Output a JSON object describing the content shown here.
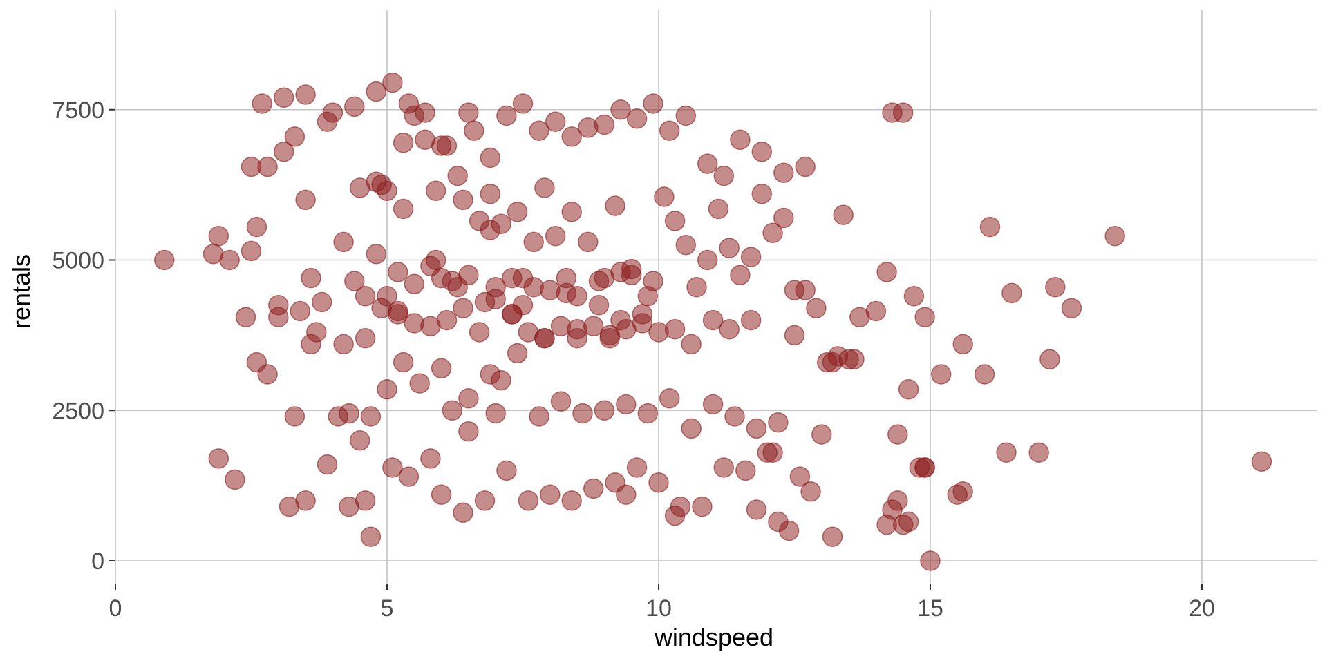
{
  "chart_data": {
    "type": "scatter",
    "title": "",
    "xlabel": "windspeed",
    "ylabel": "rentals",
    "xlim": [
      0,
      22.2
    ],
    "ylim": [
      0,
      9000
    ],
    "x_ticks": [
      0,
      5,
      10,
      15,
      20
    ],
    "x_tick_labels": [
      "0",
      "5",
      "10",
      "15",
      "20"
    ],
    "y_ticks": [
      0,
      2500,
      5000,
      7500
    ],
    "y_tick_labels": [
      "0",
      "2500",
      "5000",
      "7500"
    ],
    "grid": true,
    "point_color": "#8B1A1A",
    "point_opacity": 0.5,
    "series": [
      {
        "x": [
          0.9,
          1.8,
          1.9,
          2.1,
          2.4,
          2.5,
          2.6,
          2.7,
          2.8,
          3.0,
          3.1,
          3.3,
          3.5,
          3.6,
          3.8,
          4.0,
          4.2,
          4.4,
          4.6,
          4.8,
          4.9,
          5.0,
          5.2,
          5.3,
          5.5,
          5.7,
          5.9,
          6.1,
          6.3,
          6.5,
          6.7,
          6.9,
          7.1,
          7.3,
          7.5,
          7.7,
          7.9,
          8.1,
          8.3,
          8.5,
          8.7,
          8.9,
          9.1,
          9.3,
          9.5,
          9.7,
          9.9,
          10.1,
          10.3,
          10.5,
          10.7,
          10.9,
          11.1,
          11.3,
          11.5,
          11.7,
          11.9,
          12.1,
          12.3,
          12.5,
          12.7,
          12.9,
          13.1,
          13.4,
          13.7,
          14.0,
          14.3,
          14.5,
          14.7,
          14.9,
          15.2,
          15.6,
          16.1,
          16.5,
          17.0,
          17.3,
          17.6,
          18.4,
          21.1,
          1.9,
          2.2,
          2.6,
          3.2,
          3.9,
          4.5,
          4.7,
          5.1,
          5.4,
          5.8,
          6.0,
          6.4,
          6.8,
          7.2,
          7.6,
          8.0,
          8.4,
          8.8,
          9.2,
          9.6,
          10.0,
          10.4,
          10.8,
          11.2,
          11.6,
          12.0,
          12.4,
          12.8,
          13.2,
          13.6,
          14.2,
          14.6,
          15.0,
          15.5,
          16.0,
          16.4,
          17.2,
          2.8,
          3.3,
          3.6,
          4.1,
          4.3,
          4.7,
          5.0,
          5.3,
          5.6,
          6.0,
          6.2,
          6.5,
          6.9,
          7.1,
          7.4,
          7.8,
          8.2,
          8.6,
          9.0,
          9.4,
          9.8,
          10.2,
          10.6,
          11.0,
          11.4,
          11.8,
          12.2,
          12.6,
          13.0,
          13.5,
          14.4,
          14.8,
          3.0,
          3.4,
          3.7,
          4.2,
          4.6,
          4.9,
          5.2,
          5.5,
          5.8,
          6.1,
          6.4,
          6.7,
          7.0,
          7.3,
          7.6,
          7.9,
          8.2,
          8.5,
          8.8,
          9.1,
          9.4,
          9.7,
          10.0,
          10.3,
          10.6,
          11.0,
          11.3,
          11.7,
          12.1,
          12.5,
          13.3,
          14.2,
          2.5,
          3.1,
          3.5,
          3.9,
          4.4,
          4.8,
          5.1,
          5.4,
          5.7,
          6.0,
          6.3,
          6.6,
          6.9,
          7.2,
          7.5,
          7.8,
          8.1,
          8.4,
          8.7,
          9.0,
          9.3,
          9.6,
          9.9,
          10.2,
          10.5,
          10.9,
          11.2,
          11.5,
          11.9,
          12.3,
          12.7,
          5.0,
          5.5,
          6.0,
          6.5,
          7.0,
          7.5,
          8.0,
          8.5,
          9.0,
          9.5,
          5.2,
          5.8,
          6.2,
          6.8,
          7.3,
          7.7,
          8.3,
          8.9,
          9.3,
          9.8,
          4.5,
          4.8,
          5.3,
          5.9,
          6.4,
          6.9,
          7.4,
          7.9,
          8.4,
          9.2,
          14.3,
          14.5,
          14.9,
          15.6,
          14.4,
          14.6,
          12.2,
          13.2,
          14.9,
          10.3,
          11.8,
          9.4,
          7.0,
          6.5,
          3.5,
          4.3,
          4.6
        ],
        "y": [
          5000,
          5100,
          5400,
          5000,
          4050,
          5150,
          5550,
          7600,
          6550,
          4250,
          7700,
          7050,
          7750,
          4700,
          4300,
          7450,
          5300,
          4650,
          4400,
          5100,
          6250,
          6150,
          4800,
          6950,
          7400,
          7450,
          5000,
          6900,
          4550,
          7450,
          5650,
          5500,
          5600,
          4100,
          4250,
          5300,
          3700,
          5400,
          4450,
          3850,
          5300,
          4650,
          3700,
          4000,
          4750,
          4100,
          4650,
          6050,
          5650,
          5250,
          4550,
          5000,
          5850,
          5200,
          4750,
          5050,
          6100,
          5450,
          5700,
          4500,
          4500,
          4200,
          3300,
          5750,
          4050,
          4150,
          7450,
          7450,
          4400,
          4050,
          3100,
          3600,
          5550,
          4450,
          1800,
          4550,
          4200,
          5400,
          1650,
          1700,
          1350,
          3300,
          900,
          1600,
          2000,
          400,
          1550,
          1400,
          1700,
          1100,
          800,
          1000,
          1500,
          1000,
          1100,
          1000,
          1200,
          1300,
          1550,
          1300,
          900,
          900,
          1550,
          1500,
          1800,
          500,
          1150,
          400,
          3350,
          600,
          650,
          0,
          1100,
          3100,
          1800,
          3350,
          3100,
          2400,
          3600,
          2400,
          2450,
          2400,
          2850,
          3300,
          2950,
          3200,
          2500,
          2700,
          3100,
          3000,
          3450,
          2400,
          2650,
          2450,
          2500,
          2600,
          2450,
          2700,
          2200,
          2600,
          2400,
          2200,
          2300,
          1400,
          2100,
          3350,
          2100,
          1550,
          4050,
          4150,
          3800,
          3600,
          3700,
          4200,
          4100,
          3950,
          3900,
          4000,
          4200,
          3800,
          4350,
          4100,
          3800,
          3700,
          3900,
          3700,
          3900,
          3750,
          3850,
          3950,
          3800,
          3850,
          3600,
          4000,
          3850,
          4000,
          1800,
          3750,
          3400,
          4800,
          6550,
          6800,
          6000,
          7300,
          7550,
          7800,
          7950,
          7600,
          7000,
          6900,
          6400,
          7150,
          6700,
          7400,
          7600,
          7150,
          7300,
          7050,
          7200,
          7250,
          7500,
          7350,
          7600,
          7150,
          7400,
          6600,
          6400,
          7000,
          6800,
          6450,
          6550,
          4400,
          4600,
          4700,
          4750,
          4550,
          4700,
          4500,
          4400,
          4700,
          4850,
          4150,
          4900,
          4650,
          4300,
          4700,
          4550,
          4700,
          4250,
          4800,
          4400,
          6200,
          6300,
          5850,
          6150,
          6000,
          6100,
          5800,
          6200,
          5800,
          5900,
          850,
          600,
          1550,
          1150,
          1000,
          2850,
          650,
          3300,
          1550,
          750,
          850,
          1100,
          2450,
          2150,
          1000,
          900,
          1000
        ]
      }
    ]
  }
}
